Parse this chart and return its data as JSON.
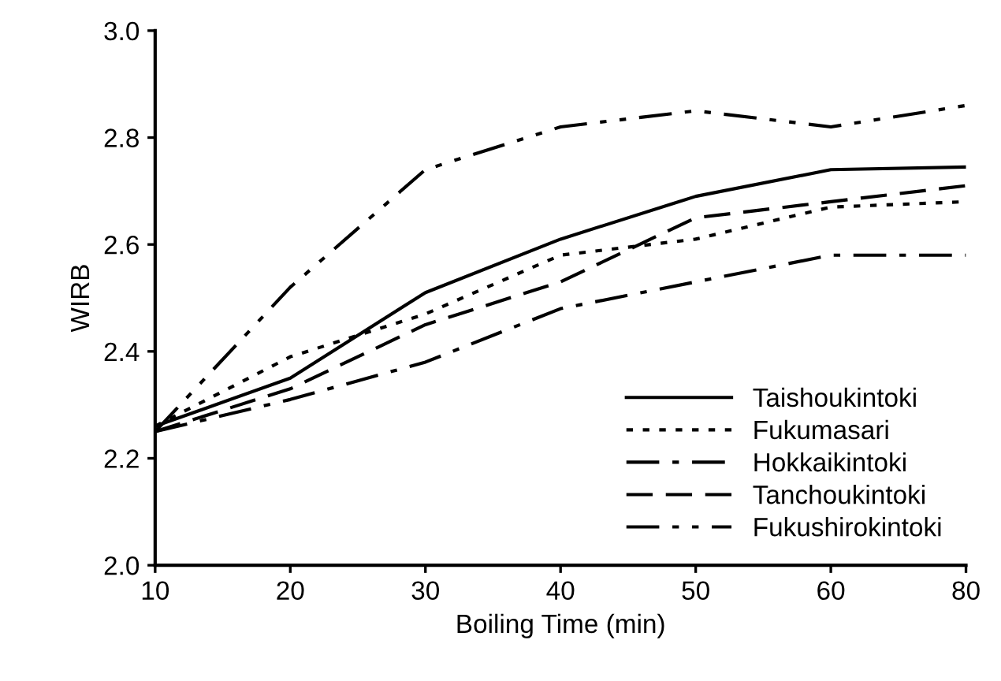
{
  "chart_data": {
    "type": "line",
    "xlabel": "Boiling Time (min)",
    "ylabel": "WIRB",
    "categories": [
      "10",
      "20",
      "30",
      "40",
      "50",
      "60",
      "80"
    ],
    "series": [
      {
        "name": "Taishoukintoki",
        "color": "#000000",
        "line_style": "solid",
        "values": [
          2.26,
          2.35,
          2.51,
          2.61,
          2.69,
          2.74,
          2.745
        ]
      },
      {
        "name": "Fukumasari",
        "color": "#000000",
        "line_style": "dotted",
        "values": [
          2.26,
          2.39,
          2.47,
          2.58,
          2.61,
          2.67,
          2.68
        ]
      },
      {
        "name": "Hokkaikintoki",
        "color": "#000000",
        "line_style": "dashdot",
        "values": [
          2.25,
          2.31,
          2.38,
          2.48,
          2.53,
          2.58,
          2.58
        ]
      },
      {
        "name": "Tanchoukintoki",
        "color": "#000000",
        "line_style": "dashed",
        "values": [
          2.25,
          2.33,
          2.45,
          2.53,
          2.65,
          2.68,
          2.71
        ]
      },
      {
        "name": "Fukushirokintoki",
        "color": "#000000",
        "line_style": "dashdotdot",
        "values": [
          2.25,
          2.52,
          2.74,
          2.82,
          2.85,
          2.82,
          2.86
        ]
      }
    ],
    "ylim": [
      2.0,
      3.0
    ],
    "yticks": [
      {
        "value": 2.0,
        "label": "2.0"
      },
      {
        "value": 2.2,
        "label": "2.2"
      },
      {
        "value": 2.4,
        "label": "2.4"
      },
      {
        "value": 2.6,
        "label": "2.6"
      },
      {
        "value": 2.8,
        "label": "2.8"
      },
      {
        "value": 3.0,
        "label": "3.0"
      }
    ],
    "grid": false,
    "legend": "bottom right",
    "marker": "none"
  }
}
